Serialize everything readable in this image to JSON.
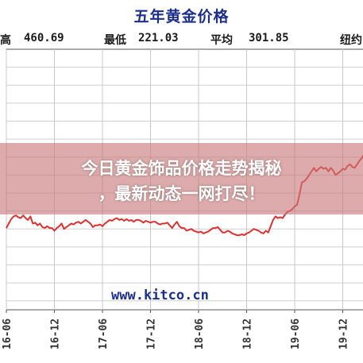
{
  "chart_data": {
    "type": "line",
    "title": "五年黄金价格",
    "stats": {
      "high_label": "高",
      "high_value": "460.69",
      "low_label": "最低",
      "low_value": "221.03",
      "avg_label": "平均",
      "avg_value": "301.85",
      "extra_label": "纽约"
    },
    "x_ticks": [
      "16-06",
      "16-12",
      "17-06",
      "17-12",
      "18-06",
      "18-12",
      "19-06",
      "19-12"
    ],
    "series": [
      {
        "color": "#e03030",
        "x": [
          0,
          0.05,
          0.1,
          0.15,
          0.2,
          0.25,
          0.3,
          0.35,
          0.4,
          0.45,
          0.5,
          0.55,
          0.6,
          0.65,
          0.7,
          0.75,
          0.8,
          0.85,
          0.9,
          0.95,
          1.0,
          1.05,
          1.1,
          1.15,
          1.2,
          1.25,
          1.3,
          1.35,
          1.4,
          1.45,
          1.5,
          1.55,
          1.6,
          1.65,
          1.7,
          1.75,
          1.8,
          1.85,
          1.9,
          1.95,
          2.0,
          2.05,
          2.1,
          2.15,
          2.2,
          2.25,
          2.3,
          2.35,
          2.4,
          2.45,
          2.5,
          2.55,
          2.6,
          2.65,
          2.7,
          2.75,
          2.8,
          2.85,
          2.9,
          2.95,
          3.0,
          3.05,
          3.1,
          3.15,
          3.2,
          3.25,
          3.3,
          3.35,
          3.4,
          3.45,
          3.5,
          3.55,
          3.6,
          3.65,
          3.7,
          3.75,
          3.8,
          3.85,
          3.9,
          3.95,
          4.0,
          4.05,
          4.1,
          4.15,
          4.2,
          4.25,
          4.3,
          4.35,
          4.4,
          4.45,
          4.5,
          4.55,
          4.6,
          4.65,
          4.7,
          4.75,
          4.8,
          4.85,
          4.9,
          4.95,
          5.0,
          5.05,
          5.1,
          5.15,
          5.2,
          5.25,
          5.3,
          5.35,
          5.4,
          5.45,
          5.5,
          5.55,
          5.6,
          5.65,
          5.7,
          5.75,
          5.8,
          5.85,
          5.9,
          5.95,
          6.0,
          6.05,
          6.1,
          6.15,
          6.2,
          6.25,
          6.3,
          6.35,
          6.4,
          6.45,
          6.5,
          6.55,
          6.6,
          6.65,
          6.7,
          6.75,
          6.8,
          6.85,
          6.9,
          6.95,
          7.0,
          7.05,
          7.1,
          7.15,
          7.2,
          7.25,
          7.3,
          7.35,
          7.4,
          7.45
        ],
        "y": [
          281,
          286,
          291,
          294,
          295,
          293,
          292,
          295,
          292,
          290,
          294,
          286,
          287,
          284,
          286,
          282,
          281,
          283,
          281,
          281,
          278,
          281,
          283,
          286,
          280,
          282,
          284,
          286,
          285,
          287,
          288,
          286,
          288,
          290,
          288,
          286,
          282,
          284,
          284,
          285,
          283,
          286,
          288,
          290,
          289,
          291,
          292,
          290,
          291,
          289,
          291,
          289,
          290,
          288,
          290,
          290,
          289,
          287,
          289,
          288,
          287,
          288,
          288,
          286,
          285,
          286,
          286,
          287,
          284,
          281,
          285,
          288,
          283,
          281,
          281,
          278,
          279,
          280,
          278,
          277,
          276,
          277,
          275,
          276,
          277,
          279,
          281,
          281,
          282,
          279,
          276,
          276,
          278,
          277,
          275,
          274,
          273,
          273,
          274,
          273,
          275,
          276,
          278,
          280,
          279,
          278,
          276,
          275,
          278,
          276,
          283,
          290,
          294,
          292,
          293,
          292,
          296,
          299,
          300,
          302,
          305,
          307,
          318,
          332,
          333,
          336,
          340,
          344,
          348,
          344,
          347,
          349,
          347,
          348,
          344,
          348,
          345,
          340,
          342,
          344,
          347,
          346,
          350,
          352,
          349,
          348,
          352,
          356,
          359,
          364
        ]
      }
    ],
    "ylim": [
      190,
      480
    ],
    "grid": true,
    "watermark": "www.kitco.cn"
  },
  "banner": {
    "line1": "今日黄金饰品价格走势揭秘",
    "line2": "，最新动态一网打尽！"
  }
}
